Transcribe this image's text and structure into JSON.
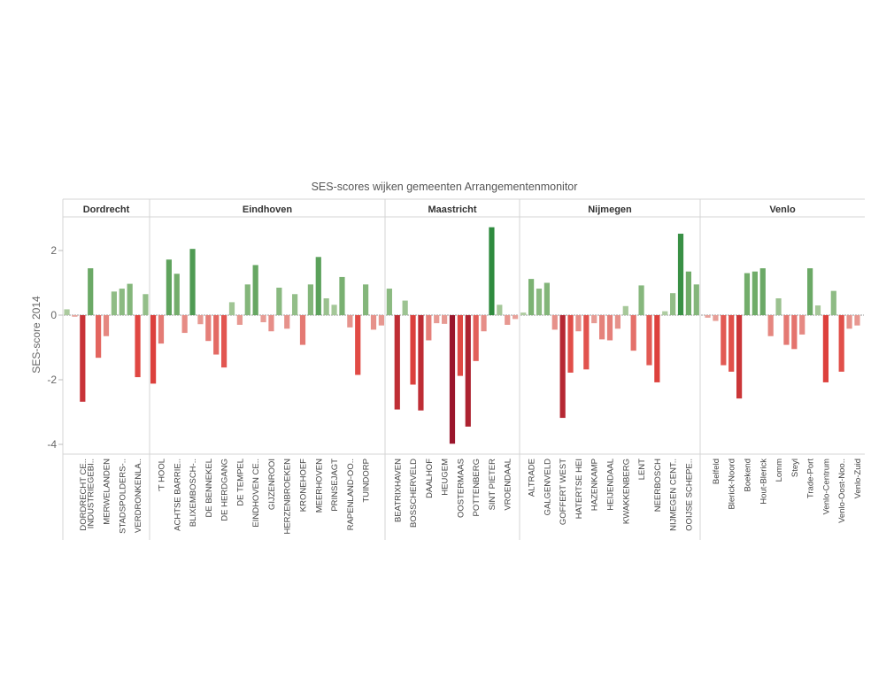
{
  "chart_data": {
    "type": "bar",
    "title": "SES-scores wijken gemeenten Arrangementenmonitor",
    "ylabel": "SES-score 2014",
    "ylim": [
      -4.3,
      3.1
    ],
    "yticks": [
      -4,
      -2,
      0,
      2
    ],
    "grid": false,
    "color_scale": {
      "min_color": "#99152b",
      "mid_low_color": "#e8a7a0",
      "mid_high_color": "#b4cfa6",
      "max_color": "#2e8a3e"
    },
    "panels": [
      {
        "name": "Dordrecht",
        "categories": [
          "DORDRECHT CE..",
          "INDUSTRIEGEBI..",
          "MERWELANDEN",
          "STADSPOLDERS-..",
          "VERDRONKENLA.."
        ],
        "bars": [
          {
            "label": "",
            "value": 0.18
          },
          {
            "label": "",
            "value": -0.05
          },
          {
            "label": "DORDRECHT CE..",
            "value": -2.68
          },
          {
            "label": "INDUSTRIEGEBI..",
            "value": 1.45
          },
          {
            "label": "",
            "value": -1.32
          },
          {
            "label": "MERWELANDEN",
            "value": -0.65
          },
          {
            "label": "",
            "value": 0.73
          },
          {
            "label": "STADSPOLDERS-..",
            "value": 0.82
          },
          {
            "label": "",
            "value": 0.97
          },
          {
            "label": "VERDRONKENLA..",
            "value": -1.92
          },
          {
            "label": "",
            "value": 0.65
          }
        ]
      },
      {
        "name": "Eindhoven",
        "categories": [
          "'T HOOL",
          "ACHTSE BARRIE..",
          "BLIXEMBOSCH-..",
          "DE BENNEKEL",
          "DE HERDGANG",
          "DE TEMPEL",
          "EINDHOVEN CE..",
          "GIJZENROOI",
          "HERZENBROEKEN",
          "KRONEHOEF",
          "MEERHOVEN",
          "PRINSEJAGT",
          "RAPENLAND-OO..",
          "TUINDORP"
        ],
        "bars": [
          {
            "label": "",
            "value": -2.12
          },
          {
            "label": "'T HOOL",
            "value": -0.88
          },
          {
            "label": "",
            "value": 1.72
          },
          {
            "label": "ACHTSE BARRIE..",
            "value": 1.28
          },
          {
            "label": "",
            "value": -0.55
          },
          {
            "label": "BLIXEMBOSCH-..",
            "value": 2.05
          },
          {
            "label": "",
            "value": -0.28
          },
          {
            "label": "DE BENNEKEL",
            "value": -0.8
          },
          {
            "label": "",
            "value": -1.22
          },
          {
            "label": "DE HERDGANG",
            "value": -1.62
          },
          {
            "label": "",
            "value": 0.4
          },
          {
            "label": "DE TEMPEL",
            "value": -0.3
          },
          {
            "label": "",
            "value": 0.95
          },
          {
            "label": "EINDHOVEN CE..",
            "value": 1.55
          },
          {
            "label": "",
            "value": -0.22
          },
          {
            "label": "GIJZENROOI",
            "value": -0.5
          },
          {
            "label": "",
            "value": 0.85
          },
          {
            "label": "HERZENBROEKEN",
            "value": -0.42
          },
          {
            "label": "",
            "value": 0.65
          },
          {
            "label": "KRONEHOEF",
            "value": -0.92
          },
          {
            "label": "",
            "value": 0.95
          },
          {
            "label": "MEERHOVEN",
            "value": 1.8
          },
          {
            "label": "",
            "value": 0.52
          },
          {
            "label": "PRINSEJAGT",
            "value": 0.32
          },
          {
            "label": "",
            "value": 1.18
          },
          {
            "label": "RAPENLAND-OO..",
            "value": -0.38
          },
          {
            "label": "",
            "value": -1.85
          },
          {
            "label": "TUINDORP",
            "value": 0.95
          },
          {
            "label": "",
            "value": -0.45
          },
          {
            "label": "",
            "value": -0.32
          }
        ]
      },
      {
        "name": "Maastricht",
        "categories": [
          "BEATRIXHAVEN",
          "BOSSCHERVELD",
          "DAALHOF",
          "HEUGEM",
          "OOSTERMAAS",
          "POTTENBERG",
          "SINT PIETER",
          "VROENDAAL"
        ],
        "bars": [
          {
            "label": "",
            "value": 0.82
          },
          {
            "label": "BEATRIXHAVEN",
            "value": -2.92
          },
          {
            "label": "",
            "value": 0.45
          },
          {
            "label": "BOSSCHERVELD",
            "value": -2.15
          },
          {
            "label": "",
            "value": -2.95
          },
          {
            "label": "DAALHOF",
            "value": -0.78
          },
          {
            "label": "",
            "value": -0.25
          },
          {
            "label": "HEUGEM",
            "value": -0.27
          },
          {
            "label": "",
            "value": -3.98
          },
          {
            "label": "OOSTERMAAS",
            "value": -1.88
          },
          {
            "label": "",
            "value": -3.45
          },
          {
            "label": "POTTENBERG",
            "value": -1.42
          },
          {
            "label": "",
            "value": -0.5
          },
          {
            "label": "SINT PIETER",
            "value": 2.72
          },
          {
            "label": "",
            "value": 0.32
          },
          {
            "label": "VROENDAAL",
            "value": -0.3
          },
          {
            "label": "",
            "value": -0.12
          }
        ]
      },
      {
        "name": "Nijmegen",
        "categories": [
          "ALTRADE",
          "GALGENVELD",
          "GOFFERT WEST",
          "HATERTSE HEI",
          "HAZENKAMP",
          "HEIJENDAAL",
          "KWAKKENBERG",
          "LENT",
          "NEERBOSCH",
          "NIJMEGEN CENT..",
          "OOIJSE SCHEPE.."
        ],
        "bars": [
          {
            "label": "",
            "value": 0.08
          },
          {
            "label": "ALTRADE",
            "value": 1.12
          },
          {
            "label": "",
            "value": 0.82
          },
          {
            "label": "GALGENVELD",
            "value": 1.0
          },
          {
            "label": "",
            "value": -0.45
          },
          {
            "label": "GOFFERT WEST",
            "value": -3.18
          },
          {
            "label": "",
            "value": -1.78
          },
          {
            "label": "HATERTSE HEI",
            "value": -0.5
          },
          {
            "label": "",
            "value": -1.68
          },
          {
            "label": "HAZENKAMP",
            "value": -0.25
          },
          {
            "label": "",
            "value": -0.75
          },
          {
            "label": "HEIJENDAAL",
            "value": -0.78
          },
          {
            "label": "",
            "value": -0.42
          },
          {
            "label": "KWAKKENBERG",
            "value": 0.28
          },
          {
            "label": "",
            "value": -1.1
          },
          {
            "label": "LENT",
            "value": 0.92
          },
          {
            "label": "",
            "value": -1.55
          },
          {
            "label": "NEERBOSCH",
            "value": -2.08
          },
          {
            "label": "",
            "value": 0.12
          },
          {
            "label": "NIJMEGEN CENT..",
            "value": 0.68
          },
          {
            "label": "",
            "value": 2.52
          },
          {
            "label": "OOIJSE SCHEPE..",
            "value": 1.35
          },
          {
            "label": "",
            "value": 0.95
          }
        ]
      },
      {
        "name": "Venlo",
        "categories": [
          "Belfeld",
          "Blerick-Noord",
          "Boekend",
          "Hout-Blerick",
          "Lomm",
          "Steyl",
          "Trade-Port",
          "Venlo-Centrum",
          "Venlo-Oost-Noo..",
          "Venlo-Zuid"
        ],
        "bars": [
          {
            "label": "",
            "value": -0.08
          },
          {
            "label": "Belfeld",
            "value": -0.18
          },
          {
            "label": "",
            "value": -1.55
          },
          {
            "label": "Blerick-Noord",
            "value": -1.75
          },
          {
            "label": "",
            "value": -2.58
          },
          {
            "label": "Boekend",
            "value": 1.3
          },
          {
            "label": "",
            "value": 1.35
          },
          {
            "label": "Hout-Blerick",
            "value": 1.45
          },
          {
            "label": "",
            "value": -0.65
          },
          {
            "label": "Lomm",
            "value": 0.52
          },
          {
            "label": "",
            "value": -0.92
          },
          {
            "label": "Steyl",
            "value": -1.05
          },
          {
            "label": "",
            "value": -0.6
          },
          {
            "label": "Trade-Port",
            "value": 1.45
          },
          {
            "label": "",
            "value": 0.3
          },
          {
            "label": "Venlo-Centrum",
            "value": -2.08
          },
          {
            "label": "",
            "value": 0.75
          },
          {
            "label": "Venlo-Oost-Noo..",
            "value": -1.75
          },
          {
            "label": "",
            "value": -0.42
          },
          {
            "label": "Venlo-Zuid",
            "value": -0.32
          }
        ]
      }
    ]
  }
}
